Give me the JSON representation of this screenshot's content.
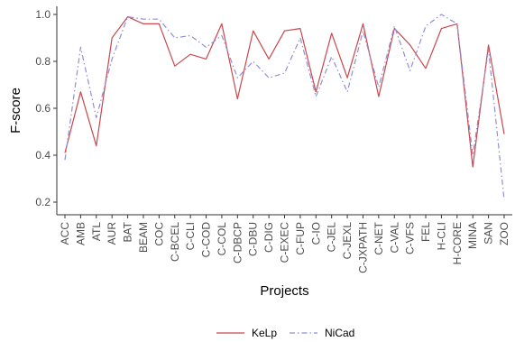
{
  "chart_data": {
    "type": "line",
    "xlabel": "Projects",
    "ylabel": "F-score",
    "ylim": [
      0.2,
      1.0
    ],
    "yticks": [
      0.2,
      0.4,
      0.6,
      0.8,
      1.0
    ],
    "ytick_labels": [
      "0.2",
      "0.4",
      "0.6",
      "0.8",
      "1.0"
    ],
    "grid": false,
    "legend_position": "bottom",
    "categories": [
      "ACC",
      "AMB",
      "ATL",
      "AUR",
      "BAT",
      "BEAM",
      "COC",
      "C-BCEL",
      "C-CLI",
      "C-COD",
      "C-COL",
      "C-DBCP",
      "C-DBU",
      "C-DIG",
      "C-EXEC",
      "C-FUP",
      "C-IO",
      "C-JEL",
      "C-JEXL",
      "C-JXPATH",
      "C-NET",
      "C-VAL",
      "C-VFS",
      "FEL",
      "H-CLI",
      "H-CORE",
      "MINA",
      "SAN",
      "ZOO"
    ],
    "series": [
      {
        "name": "KeLp",
        "color": "#c9474d",
        "dash": "solid",
        "values": [
          0.41,
          0.67,
          0.44,
          0.9,
          0.99,
          0.96,
          0.96,
          0.78,
          0.83,
          0.81,
          0.96,
          0.64,
          0.93,
          0.81,
          0.93,
          0.94,
          0.67,
          0.92,
          0.73,
          0.96,
          0.65,
          0.94,
          0.87,
          0.77,
          0.94,
          0.96,
          0.35,
          0.87,
          0.49
        ]
      },
      {
        "name": "NiCad",
        "color": "#8f8fd6",
        "dash": "dashdot",
        "values": [
          0.38,
          0.86,
          0.56,
          0.81,
          0.99,
          0.98,
          0.98,
          0.9,
          0.91,
          0.86,
          0.91,
          0.73,
          0.8,
          0.73,
          0.75,
          0.9,
          0.65,
          0.82,
          0.67,
          0.93,
          0.69,
          0.95,
          0.76,
          0.95,
          1.0,
          0.96,
          0.4,
          0.85,
          0.21
        ]
      }
    ]
  }
}
